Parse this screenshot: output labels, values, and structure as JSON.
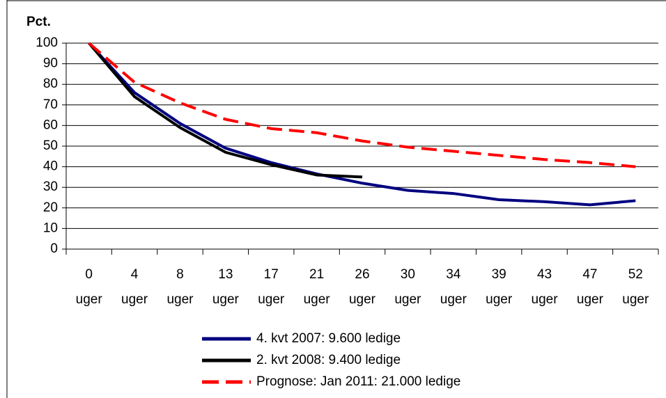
{
  "chart_data": {
    "type": "line",
    "y_label": "Pct.",
    "categories": [
      "0 uger",
      "4 uger",
      "8 uger",
      "13 uger",
      "17 uger",
      "21 uger",
      "26 uger",
      "30 uger",
      "34 uger",
      "39 uger",
      "43 uger",
      "47 uger",
      "52 uger"
    ],
    "series": [
      {
        "name": "4. kvt 2007: 9.600 ledige",
        "color": "#000080",
        "values": [
          100,
          76,
          61,
          49,
          42,
          36.5,
          32,
          28.5,
          27,
          24,
          23,
          21.5,
          23.5
        ]
      },
      {
        "name": "2. kvt 2008: 9.400 ledige",
        "color": "#000000",
        "values": [
          100,
          74,
          59,
          47,
          41,
          36,
          35,
          null,
          null,
          null,
          null,
          null,
          null
        ]
      },
      {
        "name": "Prognose: Jan 2011: 21.000 ledige",
        "color": "#ff0000",
        "dashed": true,
        "values": [
          100,
          81,
          71,
          63,
          58.5,
          56.5,
          52.5,
          49.5,
          47.5,
          45.5,
          43.5,
          42,
          40
        ]
      }
    ],
    "ylim": [
      0,
      100
    ],
    "yticks": [
      0,
      10,
      20,
      30,
      40,
      50,
      60,
      70,
      80,
      90,
      100
    ],
    "grid": true
  }
}
